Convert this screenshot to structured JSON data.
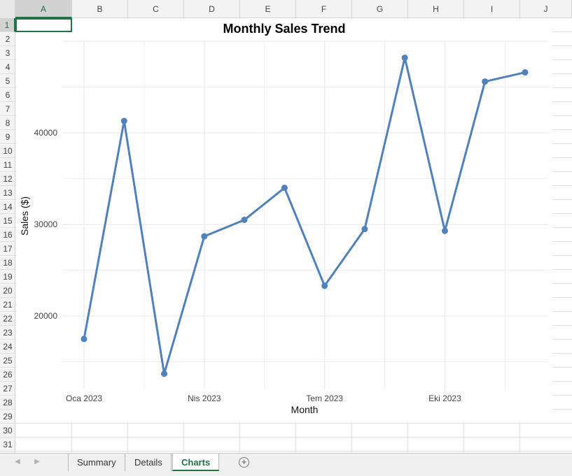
{
  "spreadsheet": {
    "columns": [
      "A",
      "B",
      "C",
      "D",
      "E",
      "F",
      "G",
      "H",
      "I",
      "J"
    ],
    "active_column": "A",
    "rows": [
      "1",
      "2",
      "3",
      "4",
      "5",
      "6",
      "7",
      "8",
      "9",
      "10",
      "11",
      "12",
      "13",
      "14",
      "15",
      "16",
      "17",
      "18",
      "19",
      "20",
      "21",
      "22",
      "23",
      "24",
      "25",
      "26",
      "27",
      "28",
      "29",
      "30",
      "31"
    ],
    "active_row": "1"
  },
  "sheet_tabs": {
    "items": [
      "Summary",
      "Details",
      "Charts"
    ],
    "active": "Charts",
    "add_label": "+"
  },
  "colors": {
    "accent": "#217346",
    "series_line": "#4f81bd",
    "gridline": "#ebebeb"
  },
  "chart_data": {
    "type": "line",
    "title": "Monthly Sales Trend",
    "xlabel": "Month",
    "ylabel": "Sales ($)",
    "x_tick_labels": [
      "Oca 2023",
      "Nis 2023",
      "Tem 2023",
      "Eki 2023"
    ],
    "x_tick_month_index": [
      0,
      3,
      6,
      9
    ],
    "y_ticks": [
      20000,
      30000,
      40000
    ],
    "ylim": [
      12000,
      50000
    ],
    "grid": true,
    "legend": false,
    "series": [
      {
        "points": [
          {
            "month_index": 0,
            "value": 17500
          },
          {
            "month_index": 1,
            "value": 41300
          },
          {
            "month_index": 2,
            "value": 13700
          },
          {
            "month_index": 3,
            "value": 28700
          },
          {
            "month_index": 4,
            "value": 30500
          },
          {
            "month_index": 5,
            "value": 34000
          },
          {
            "month_index": 6,
            "value": 23300
          },
          {
            "month_index": 7,
            "value": 29500
          },
          {
            "month_index": 8,
            "value": 48200
          },
          {
            "month_index": 9,
            "value": 29300
          },
          {
            "month_index": 10,
            "value": 45600
          },
          {
            "month_index": 11,
            "value": 46600
          }
        ]
      }
    ]
  }
}
